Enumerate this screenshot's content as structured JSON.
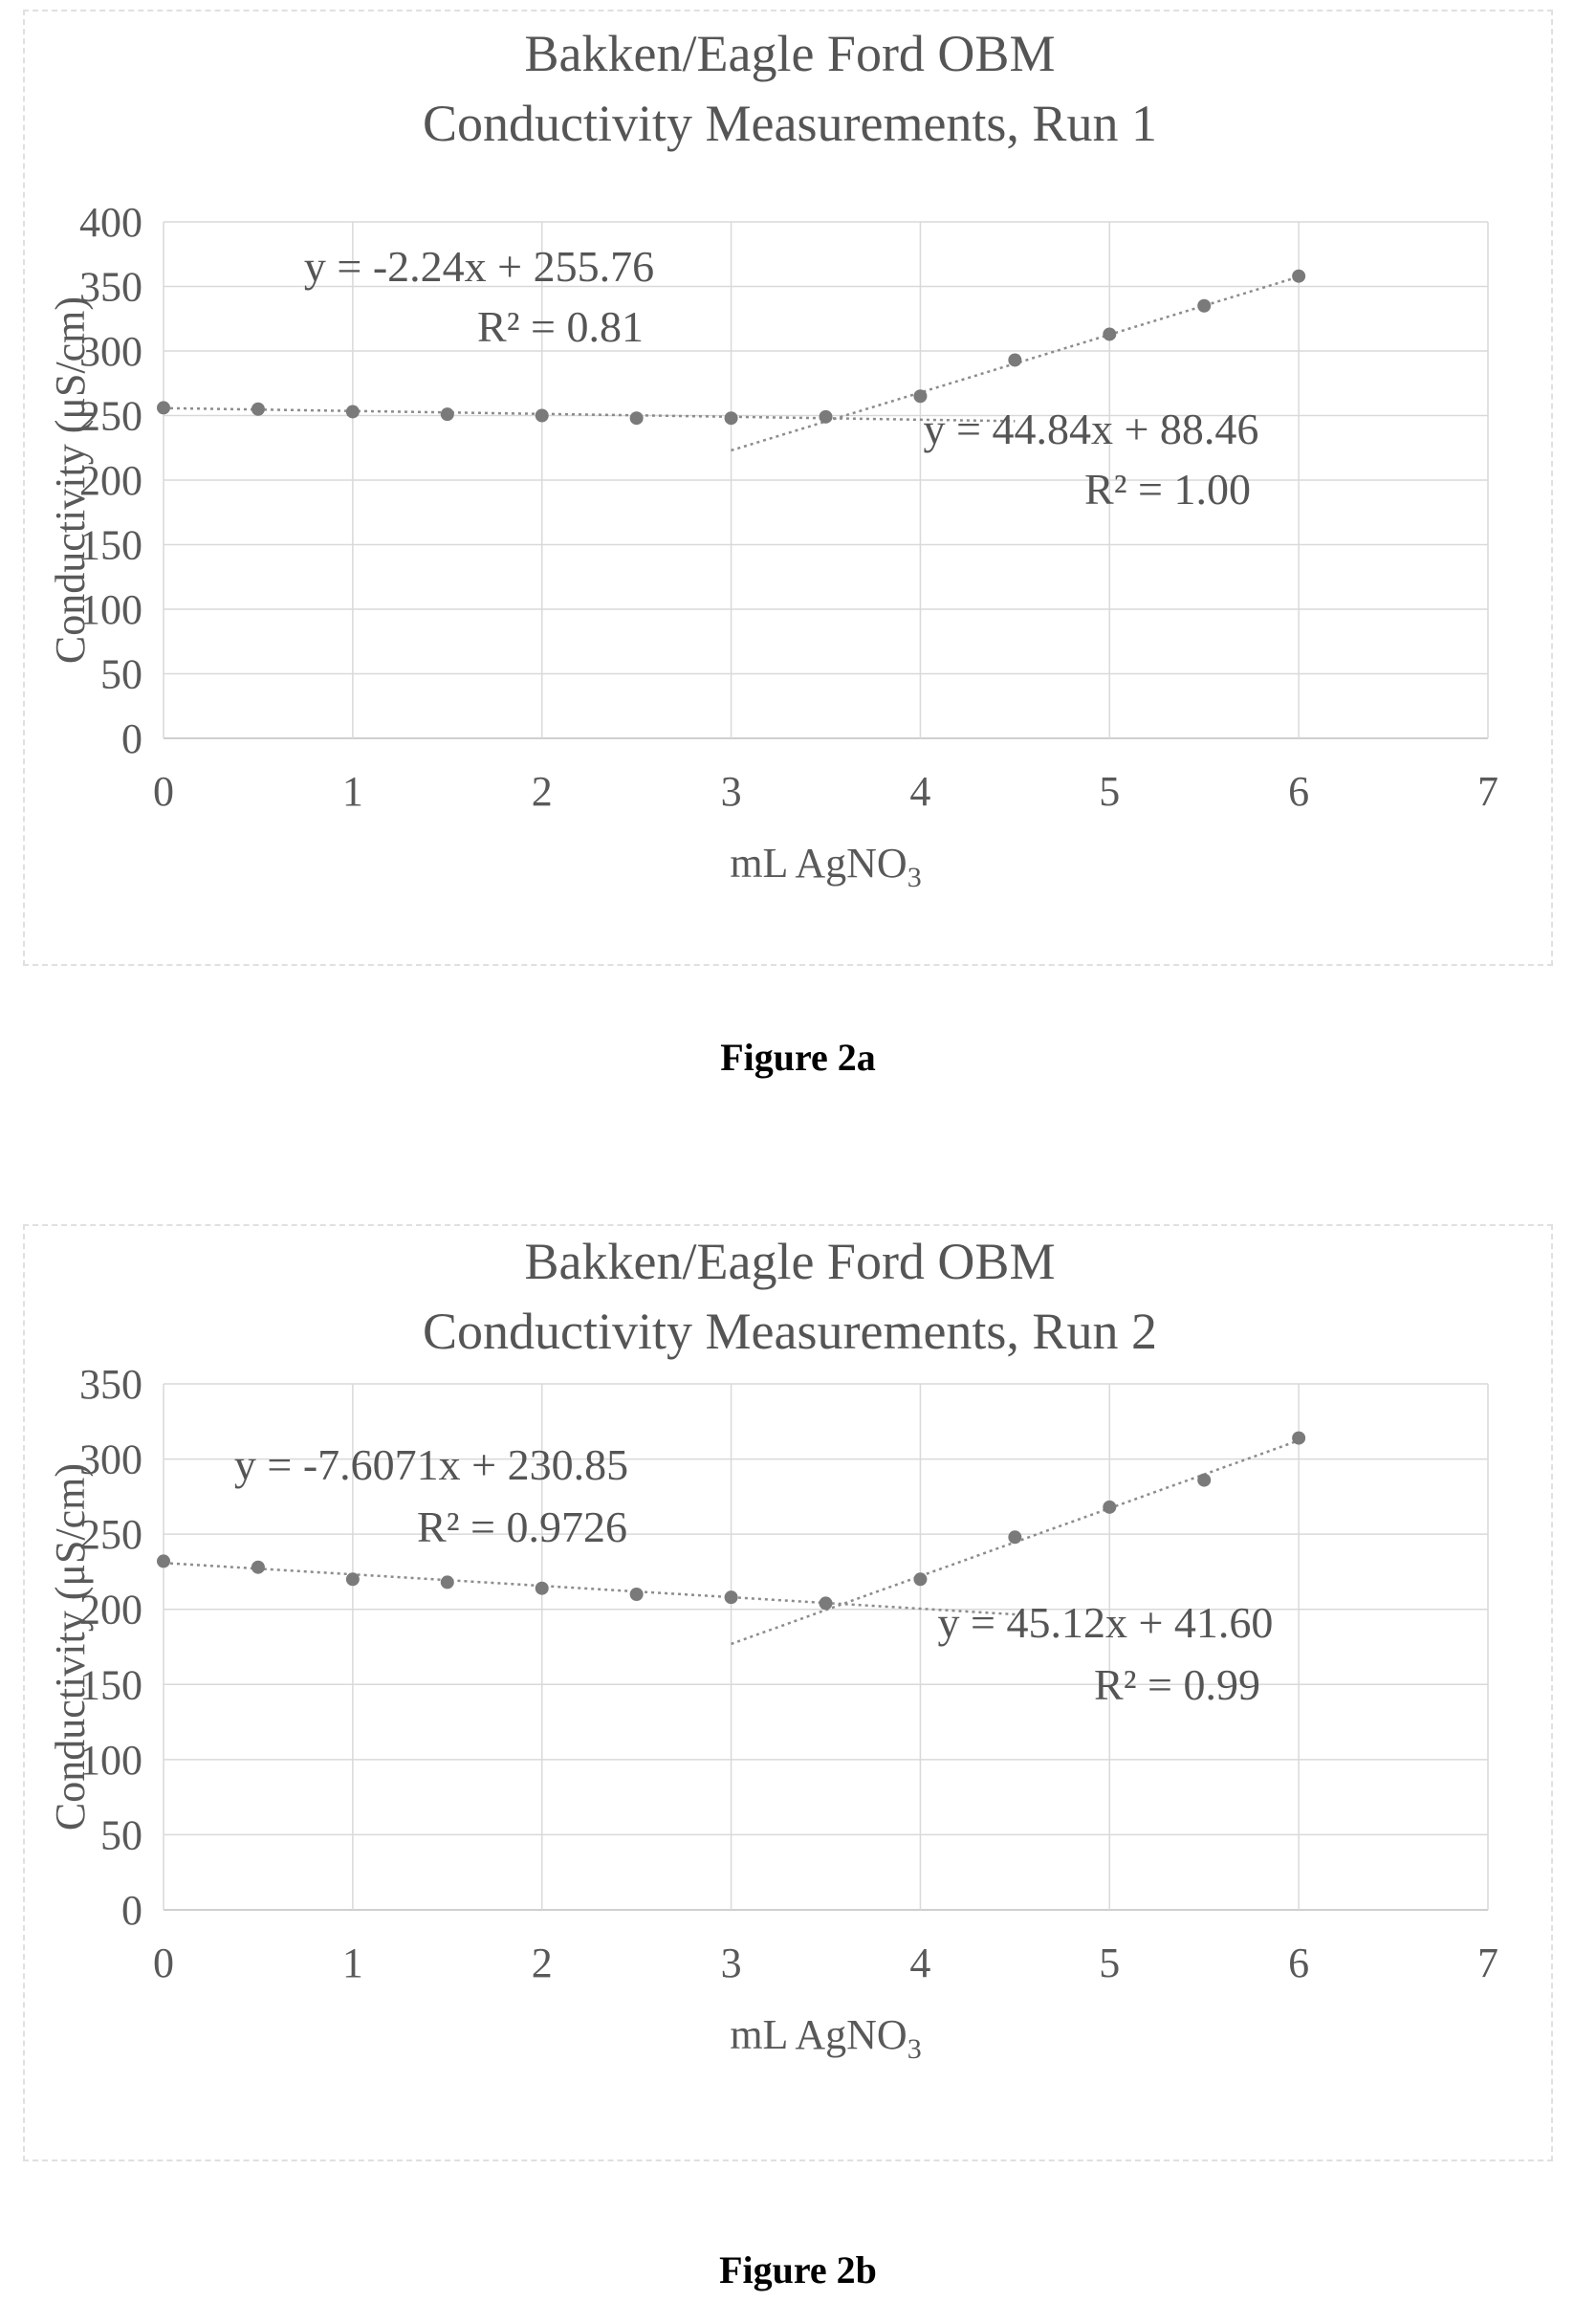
{
  "chart_data": [
    {
      "type": "scatter",
      "title": [
        "Bakken/Eagle Ford OBM",
        "Conductivity Measurements, Run 1"
      ],
      "xlabel": "mL AgNO",
      "xlabel_subscript": "3",
      "ylabel": "Conductivity (μS/cm)",
      "xlim": [
        0,
        7
      ],
      "ylim": [
        0,
        400
      ],
      "xticks": [
        0,
        1,
        2,
        3,
        4,
        5,
        6,
        7
      ],
      "yticks": [
        0,
        50,
        100,
        150,
        200,
        250,
        300,
        350,
        400
      ],
      "grid": true,
      "series": [
        {
          "x": [
            0,
            0.5,
            1,
            1.5,
            2,
            2.5,
            3,
            3.5,
            4,
            4.5,
            5,
            5.5,
            6
          ],
          "y": [
            256,
            255,
            253,
            251,
            250,
            248,
            248,
            249,
            265,
            293,
            313,
            335,
            358
          ]
        }
      ],
      "trendlines": [
        {
          "slope": -2.24,
          "intercept": 255.76,
          "x_range": [
            0,
            4.5
          ],
          "equation": "y = -2.24x + 255.76",
          "r2": "R² = 0.81"
        },
        {
          "slope": 44.84,
          "intercept": 88.46,
          "x_range": [
            3,
            6
          ],
          "equation": "y = 44.84x + 88.46",
          "r2": "R² = 1.00"
        }
      ],
      "caption": "Figure 2a"
    },
    {
      "type": "scatter",
      "title": [
        "Bakken/Eagle Ford OBM",
        "Conductivity Measurements, Run 2"
      ],
      "xlabel": "mL AgNO",
      "xlabel_subscript": "3",
      "ylabel": "Conductivity (μS/cm)",
      "xlim": [
        0,
        7
      ],
      "ylim": [
        0,
        350
      ],
      "xticks": [
        0,
        1,
        2,
        3,
        4,
        5,
        6,
        7
      ],
      "yticks": [
        0,
        50,
        100,
        150,
        200,
        250,
        300,
        350
      ],
      "grid": true,
      "series": [
        {
          "x": [
            0,
            0.5,
            1,
            1.5,
            2,
            2.5,
            3,
            3.5,
            4,
            4.5,
            5,
            5.5,
            6
          ],
          "y": [
            232,
            228,
            220,
            218,
            214,
            210,
            208,
            204,
            220,
            248,
            268,
            286,
            314
          ]
        }
      ],
      "trendlines": [
        {
          "slope": -7.6071,
          "intercept": 230.85,
          "x_range": [
            0,
            4.5
          ],
          "equation": "y = -7.6071x + 230.85",
          "r2": "R² = 0.9726"
        },
        {
          "slope": 45.12,
          "intercept": 41.6,
          "x_range": [
            3,
            6
          ],
          "equation": "y = 45.12x + 41.60",
          "r2": "R² = 0.99"
        }
      ],
      "caption": "Figure 2b"
    }
  ],
  "colors": {
    "points": "#7a7a7a",
    "grid": "#d9d9d9",
    "text": "#595959"
  }
}
